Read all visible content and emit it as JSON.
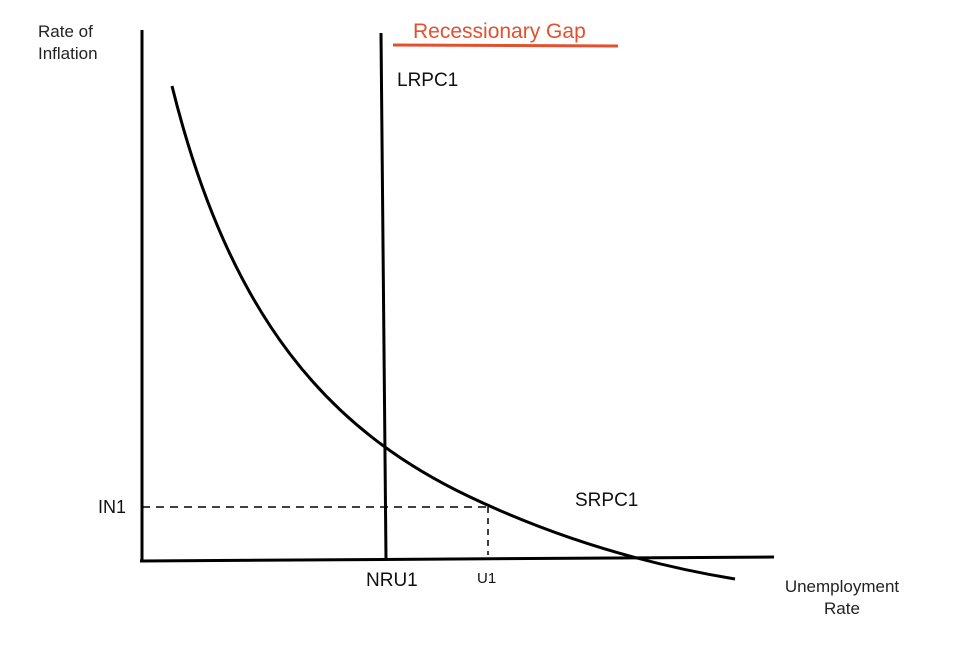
{
  "diagram": {
    "title": "Recessionary Gap",
    "title_color": "#e2502f",
    "y_axis_title": [
      "Rate of",
      "Inflation"
    ],
    "x_axis_title": [
      "Unemployment",
      "Rate"
    ],
    "lrpc_label": "LRPC1",
    "srpc_label": "SRPC1",
    "in1_label": "IN1",
    "nru1_label": "NRU1",
    "u1_label": "U1",
    "line_color": "#000000"
  }
}
